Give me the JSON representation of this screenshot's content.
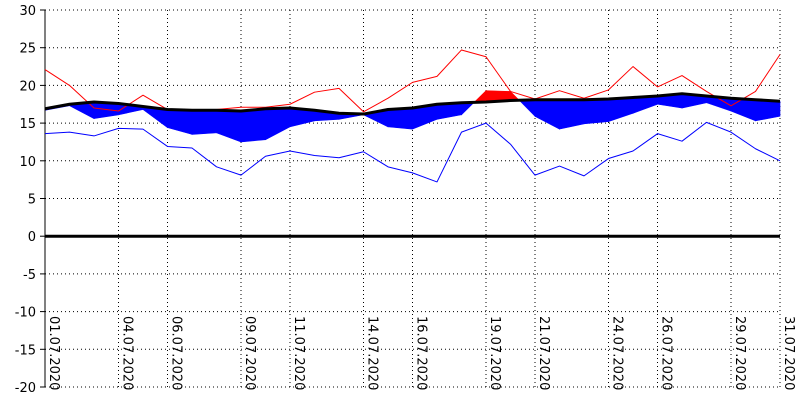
{
  "chart_data": {
    "type": "line",
    "title": "",
    "xlabel": "",
    "ylabel": "",
    "ylim": [
      -20,
      30
    ],
    "yticks": [
      30,
      25,
      20,
      15,
      10,
      5,
      0,
      -5,
      -10,
      -15,
      -20
    ],
    "grid": true,
    "x": [
      "01.07.2020",
      "02.07.2020",
      "03.07.2020",
      "04.07.2020",
      "05.07.2020",
      "06.07.2020",
      "07.07.2020",
      "08.07.2020",
      "09.07.2020",
      "10.07.2020",
      "11.07.2020",
      "12.07.2020",
      "13.07.2020",
      "14.07.2020",
      "15.07.2020",
      "16.07.2020",
      "17.07.2020",
      "18.07.2020",
      "19.07.2020",
      "20.07.2020",
      "21.07.2020",
      "22.07.2020",
      "23.07.2020",
      "24.07.2020",
      "25.07.2020",
      "26.07.2020",
      "27.07.2020",
      "28.07.2020",
      "29.07.2020",
      "30.07.2020",
      "31.07.2020"
    ],
    "xtick_labels": [
      "01.07.2020",
      "04.07.2020",
      "06.07.2020",
      "09.07.2020",
      "11.07.2020",
      "14.07.2020",
      "16.07.2020",
      "19.07.2020",
      "21.07.2020",
      "24.07.2020",
      "26.07.2020",
      "29.07.2020",
      "31.07.2020"
    ],
    "series": [
      {
        "role": "max",
        "color": "#ff0000",
        "values": [
          22.1,
          20.0,
          17.0,
          16.6,
          18.7,
          16.8,
          16.8,
          16.8,
          17.1,
          17.1,
          17.5,
          19.1,
          19.6,
          16.5,
          18.3,
          20.4,
          21.2,
          24.7,
          23.8,
          19.2,
          18.2,
          19.3,
          18.3,
          19.4,
          22.5,
          19.8,
          21.3,
          19.2,
          17.3,
          19.2,
          24.1
        ]
      },
      {
        "role": "mean",
        "color": "#0000ff",
        "values": [
          16.7,
          17.3,
          15.6,
          16.1,
          16.8,
          14.4,
          13.5,
          13.7,
          12.5,
          12.8,
          14.5,
          15.3,
          15.5,
          16.1,
          14.5,
          14.2,
          15.5,
          16.1,
          19.3,
          19.2,
          15.9,
          14.2,
          14.9,
          15.2,
          16.3,
          17.5,
          17.0,
          17.7,
          16.6,
          15.3,
          15.9
        ]
      },
      {
        "role": "min",
        "color": "#0000ff",
        "values": [
          13.6,
          13.8,
          13.3,
          14.3,
          14.2,
          11.9,
          11.7,
          9.2,
          8.1,
          10.6,
          11.3,
          10.7,
          10.4,
          11.2,
          9.2,
          8.4,
          7.2,
          13.8,
          15.0,
          12.2,
          8.1,
          9.3,
          8.0,
          10.3,
          11.3,
          13.6,
          12.6,
          15.1,
          13.8,
          11.6,
          10.0
        ]
      },
      {
        "role": "normal",
        "color": "#000000",
        "values": [
          16.9,
          17.5,
          17.8,
          17.6,
          17.2,
          16.8,
          16.7,
          16.7,
          16.6,
          16.9,
          17.0,
          16.7,
          16.3,
          16.2,
          16.8,
          17.0,
          17.5,
          17.7,
          17.8,
          18.0,
          18.1,
          18.1,
          18.1,
          18.2,
          18.4,
          18.6,
          18.9,
          18.6,
          18.3,
          18.1,
          17.9
        ]
      }
    ],
    "fill": {
      "above_color": "#ff0000",
      "below_color": "#0000ff"
    }
  }
}
